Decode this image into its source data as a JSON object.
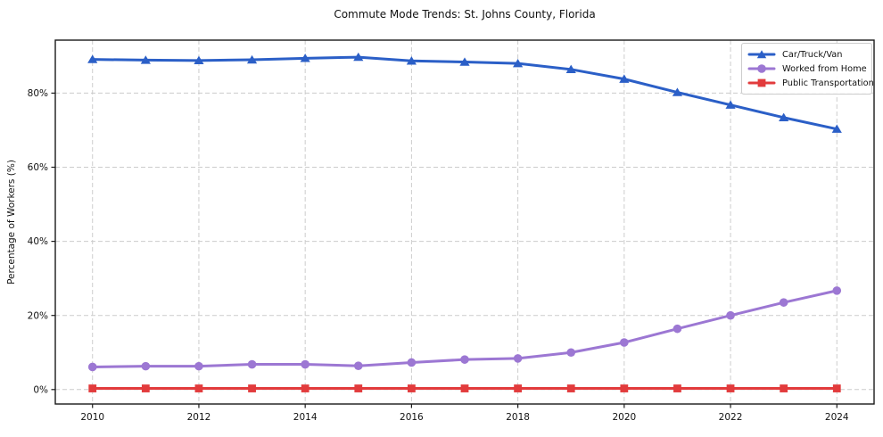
{
  "chart_data": {
    "type": "line",
    "title": "Commute Mode Trends: St. Johns County, Florida",
    "xlabel": "",
    "ylabel": "Percentage of Workers (%)",
    "x": [
      2010,
      2011,
      2012,
      2013,
      2014,
      2015,
      2016,
      2017,
      2018,
      2019,
      2020,
      2021,
      2022,
      2023,
      2024
    ],
    "series": [
      {
        "name": "Car/Truck/Van",
        "color": "#2b5fc7",
        "marker": "triangle",
        "values": [
          89.1,
          88.9,
          88.8,
          89.0,
          89.4,
          89.7,
          88.7,
          88.4,
          88.0,
          86.4,
          83.8,
          80.2,
          76.8,
          73.4,
          70.3
        ]
      },
      {
        "name": "Worked from Home",
        "color": "#9c77d3",
        "marker": "circle",
        "values": [
          6.1,
          6.3,
          6.3,
          6.8,
          6.8,
          6.4,
          7.3,
          8.1,
          8.4,
          10.0,
          12.7,
          16.4,
          20.0,
          23.5,
          26.7
        ]
      },
      {
        "name": "Public Transportation",
        "color": "#e23b3c",
        "marker": "square",
        "values": [
          0.3,
          0.3,
          0.3,
          0.3,
          0.3,
          0.3,
          0.3,
          0.3,
          0.3,
          0.3,
          0.3,
          0.3,
          0.3,
          0.3,
          0.3
        ]
      }
    ],
    "x_ticks": [
      2010,
      2012,
      2014,
      2016,
      2018,
      2020,
      2022,
      2024
    ],
    "y_ticks": [
      {
        "value": 0,
        "label": "0%"
      },
      {
        "value": 20,
        "label": "20%"
      },
      {
        "value": 40,
        "label": "40%"
      },
      {
        "value": 60,
        "label": "60%"
      },
      {
        "value": 80,
        "label": "80%"
      }
    ],
    "xlim": [
      2009.3,
      2024.7
    ],
    "ylim": [
      -3.9,
      94.3
    ],
    "grid": "dashed",
    "grid_color": "#cccccc",
    "axis_color": "#1a1a1a",
    "background_color": "#ffffff",
    "legend_position": "upper right"
  }
}
